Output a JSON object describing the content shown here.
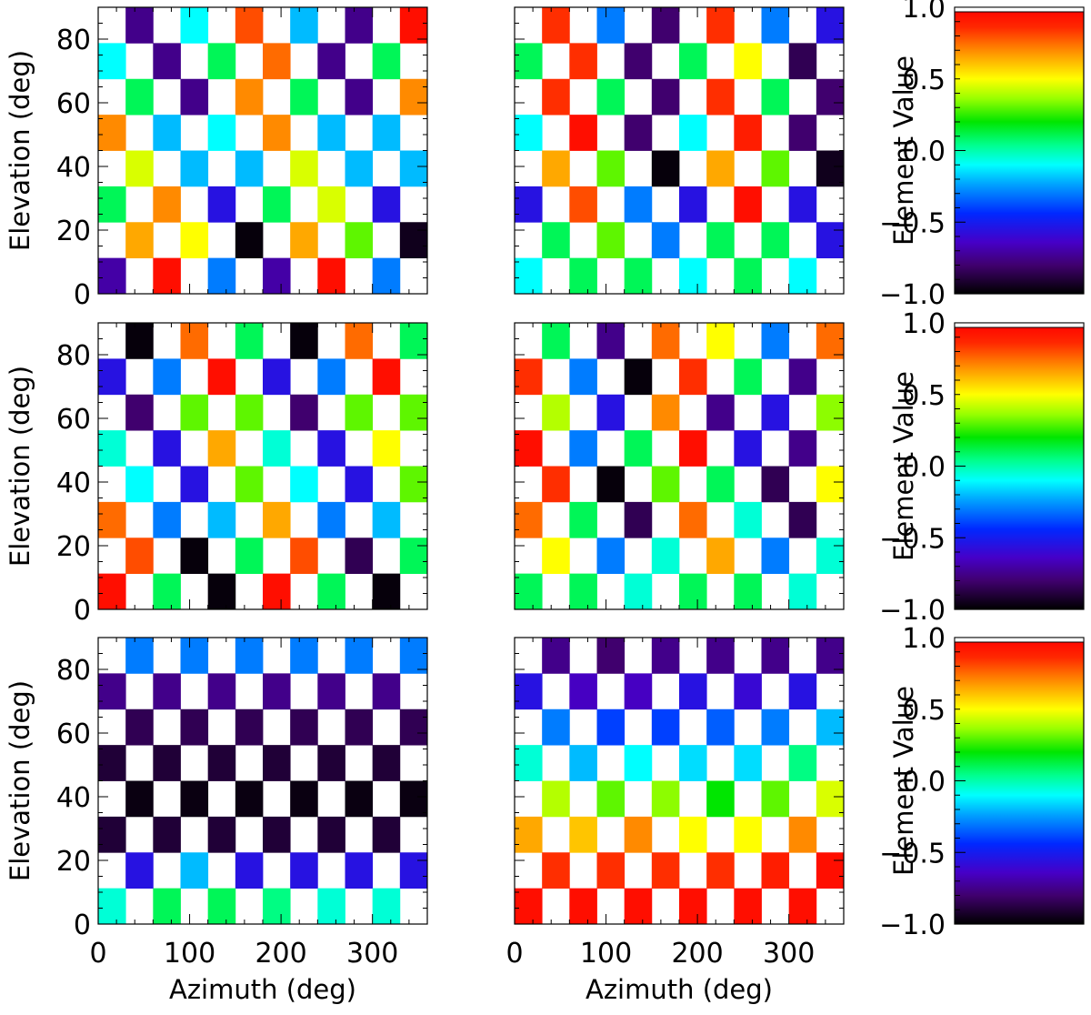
{
  "chart_data": {
    "type": "heatmap",
    "layout": "3 rows x 2 panels, each row with its own colorbar",
    "xlabel": "Azimuth (deg)",
    "ylabel": "Elevation (deg)",
    "colorbar_label": "Element Value",
    "xlim": [
      0,
      360
    ],
    "ylim": [
      0,
      90
    ],
    "clim": [
      -1.0,
      1.0
    ],
    "x_ticks": [
      "0",
      "100",
      "200",
      "300"
    ],
    "y_ticks": [
      "0",
      "20",
      "40",
      "60",
      "80"
    ],
    "colorbar_ticks": [
      "1.0",
      "0.5",
      "0.0",
      "−0.5",
      "−1.0"
    ],
    "grid": {
      "columns": 12,
      "rows": 8,
      "pattern": "checkerboard, empty cells white"
    },
    "panels": [
      {
        "row_values": [
          [
            null,
            -0.75,
            null,
            -0.1,
            null,
            0.8,
            null,
            -0.2,
            null,
            -0.75,
            null,
            0.95
          ],
          [
            -0.1,
            null,
            -0.75,
            null,
            0.1,
            null,
            0.75,
            null,
            -0.75,
            null,
            0.1,
            null
          ],
          [
            null,
            0.1,
            null,
            -0.75,
            null,
            0.7,
            null,
            0.1,
            null,
            -0.75,
            null,
            0.7
          ],
          [
            0.7,
            null,
            -0.2,
            null,
            -0.1,
            null,
            0.7,
            null,
            -0.2,
            null,
            -0.2,
            null
          ],
          [
            null,
            0.45,
            null,
            -0.2,
            null,
            -0.2,
            null,
            0.45,
            null,
            -0.2,
            null,
            -0.2
          ],
          [
            0.1,
            null,
            0.7,
            null,
            -0.55,
            null,
            0.1,
            null,
            0.45,
            null,
            -0.55,
            null
          ],
          [
            null,
            0.65,
            null,
            0.5,
            null,
            -0.98,
            null,
            0.65,
            null,
            0.3,
            null,
            -0.95
          ],
          [
            -0.7,
            null,
            0.95,
            null,
            -0.3,
            null,
            -0.7,
            null,
            0.95,
            null,
            -0.3,
            null
          ]
        ]
      },
      {
        "row_values": [
          [
            null,
            0.85,
            null,
            -0.3,
            null,
            -0.8,
            null,
            0.85,
            null,
            -0.3,
            null,
            -0.55
          ],
          [
            0.1,
            null,
            0.85,
            null,
            -0.8,
            null,
            0.1,
            null,
            0.5,
            null,
            -0.85,
            null
          ],
          [
            null,
            0.85,
            null,
            0.1,
            null,
            -0.8,
            null,
            0.85,
            null,
            0.1,
            null,
            -0.8
          ],
          [
            -0.1,
            null,
            0.95,
            null,
            -0.8,
            null,
            -0.1,
            null,
            0.9,
            null,
            -0.8,
            null
          ],
          [
            null,
            0.65,
            null,
            0.3,
            null,
            -0.98,
            null,
            0.65,
            null,
            0.3,
            null,
            -0.95
          ],
          [
            -0.55,
            null,
            0.8,
            null,
            -0.3,
            null,
            -0.55,
            null,
            0.95,
            null,
            -0.55,
            null
          ],
          [
            null,
            0.1,
            null,
            0.3,
            null,
            -0.3,
            null,
            0.1,
            null,
            0.1,
            null,
            -0.55
          ],
          [
            -0.1,
            null,
            0.1,
            null,
            0.1,
            null,
            -0.1,
            null,
            0.1,
            null,
            -0.1,
            null
          ]
        ]
      },
      {
        "row_values": [
          [
            null,
            -0.98,
            null,
            0.75,
            null,
            0.1,
            null,
            -0.98,
            null,
            0.75,
            null,
            0.1
          ],
          [
            -0.55,
            null,
            -0.3,
            null,
            0.95,
            null,
            -0.55,
            null,
            -0.3,
            null,
            0.95,
            null
          ],
          [
            null,
            -0.8,
            null,
            0.3,
            null,
            0.3,
            null,
            -0.8,
            null,
            0.3,
            null,
            0.3
          ],
          [
            -0.05,
            null,
            -0.55,
            null,
            0.65,
            null,
            -0.05,
            null,
            -0.55,
            null,
            0.5,
            null
          ],
          [
            null,
            -0.1,
            null,
            -0.55,
            null,
            0.3,
            null,
            -0.1,
            null,
            -0.55,
            null,
            0.3
          ],
          [
            0.75,
            null,
            -0.3,
            null,
            -0.2,
            null,
            0.65,
            null,
            -0.3,
            null,
            -0.2,
            null
          ],
          [
            null,
            0.8,
            null,
            -0.98,
            null,
            0.1,
            null,
            0.8,
            null,
            -0.85,
            null,
            0.1
          ],
          [
            0.95,
            null,
            0.1,
            null,
            -0.98,
            null,
            0.95,
            null,
            0.1,
            null,
            -0.98,
            null
          ]
        ]
      },
      {
        "row_values": [
          [
            null,
            0.1,
            null,
            -0.75,
            null,
            0.75,
            null,
            0.5,
            null,
            -0.3,
            null,
            0.75
          ],
          [
            0.85,
            null,
            -0.3,
            null,
            -0.98,
            null,
            0.85,
            null,
            0.1,
            null,
            -0.75,
            null
          ],
          [
            null,
            0.4,
            null,
            -0.55,
            null,
            0.7,
            null,
            -0.75,
            null,
            -0.55,
            null,
            0.35
          ],
          [
            0.95,
            null,
            -0.3,
            null,
            0.1,
            null,
            0.95,
            null,
            -0.55,
            null,
            -0.75,
            null
          ],
          [
            null,
            0.85,
            null,
            -0.98,
            null,
            0.3,
            null,
            0.1,
            null,
            -0.85,
            null,
            0.5
          ],
          [
            0.75,
            null,
            0.1,
            null,
            -0.85,
            null,
            0.75,
            null,
            -0.05,
            null,
            -0.85,
            null
          ],
          [
            null,
            0.5,
            null,
            -0.3,
            null,
            -0.05,
            null,
            0.65,
            null,
            -0.3,
            null,
            -0.05
          ],
          [
            0.1,
            null,
            0.1,
            null,
            -0.05,
            null,
            0.1,
            null,
            0.1,
            null,
            -0.05,
            null
          ]
        ]
      },
      {
        "row_values": [
          [
            null,
            -0.3,
            null,
            -0.3,
            null,
            -0.3,
            null,
            -0.3,
            null,
            -0.3,
            null,
            -0.3
          ],
          [
            -0.75,
            null,
            -0.75,
            null,
            -0.75,
            null,
            -0.75,
            null,
            -0.75,
            null,
            -0.75,
            null
          ],
          [
            null,
            -0.85,
            null,
            -0.85,
            null,
            -0.85,
            null,
            -0.85,
            null,
            -0.85,
            null,
            -0.85
          ],
          [
            -0.9,
            null,
            -0.9,
            null,
            -0.9,
            null,
            -0.9,
            null,
            -0.9,
            null,
            -0.9,
            null
          ],
          [
            null,
            -0.97,
            null,
            -0.97,
            null,
            -0.97,
            null,
            -0.97,
            null,
            -0.97,
            null,
            -0.97
          ],
          [
            -0.9,
            null,
            -0.9,
            null,
            -0.9,
            null,
            -0.9,
            null,
            -0.9,
            null,
            -0.9,
            null
          ],
          [
            null,
            -0.55,
            null,
            -0.2,
            null,
            -0.55,
            null,
            -0.55,
            null,
            -0.55,
            null,
            -0.55
          ],
          [
            -0.05,
            null,
            0.1,
            null,
            0.1,
            null,
            0.05,
            null,
            -0.05,
            null,
            -0.05,
            null
          ]
        ]
      },
      {
        "row_values": [
          [
            null,
            -0.75,
            null,
            -0.8,
            null,
            -0.75,
            null,
            -0.75,
            null,
            -0.75,
            null,
            -0.75
          ],
          [
            -0.55,
            null,
            -0.65,
            null,
            -0.65,
            null,
            -0.55,
            null,
            -0.6,
            null,
            -0.55,
            null
          ],
          [
            null,
            -0.3,
            null,
            -0.4,
            null,
            -0.4,
            null,
            -0.35,
            null,
            -0.3,
            null,
            -0.2
          ],
          [
            -0.05,
            null,
            -0.2,
            null,
            -0.1,
            null,
            -0.15,
            null,
            -0.15,
            null,
            0.05,
            null
          ],
          [
            null,
            0.4,
            null,
            0.3,
            null,
            0.35,
            null,
            0.2,
            null,
            0.3,
            null,
            0.45
          ],
          [
            0.65,
            null,
            0.6,
            null,
            0.7,
            null,
            0.5,
            null,
            0.5,
            null,
            0.7,
            null
          ],
          [
            null,
            0.85,
            null,
            0.85,
            null,
            0.85,
            null,
            0.85,
            null,
            0.9,
            null,
            0.95
          ],
          [
            0.95,
            null,
            0.95,
            null,
            0.95,
            null,
            0.95,
            null,
            0.95,
            null,
            0.95,
            null
          ]
        ]
      }
    ]
  }
}
